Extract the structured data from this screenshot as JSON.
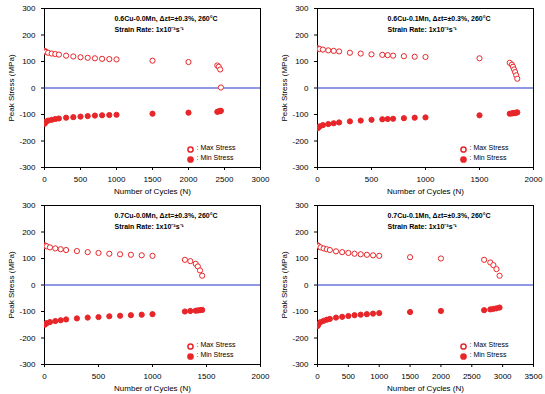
{
  "chart_data": [
    {
      "type": "scatter",
      "annotations": [
        "0.6Cu-0.0Mn, Δεt=±0.3%, 260°C",
        "Strain Rate: 1x10⁻³s⁻¹"
      ],
      "x_label": "Number of Cycles (N)",
      "y_label": "Peak Stress (MPa)",
      "x": [
        1,
        10,
        20,
        50,
        100,
        150,
        200,
        300,
        400,
        500,
        600,
        700,
        800,
        900,
        1000,
        1500,
        2000,
        2400,
        2420,
        2440,
        2450
      ],
      "series": [
        {
          "name": ": Max Stress",
          "color": "#e8262a",
          "marker": "open_circle",
          "values": [
            140,
            138,
            136,
            133,
            130,
            128,
            126,
            122,
            119,
            116,
            114,
            112,
            110,
            109,
            108,
            103,
            98,
            85,
            80,
            70,
            2
          ]
        },
        {
          "name": ": Min Stress",
          "color": "#e8262a",
          "marker": "circle",
          "values": [
            -135,
            -130,
            -127,
            -123,
            -120,
            -117,
            -115,
            -112,
            -110,
            -108,
            -106,
            -104,
            -103,
            -102,
            -101,
            -97,
            -93,
            -90,
            -88,
            -87,
            -86
          ]
        }
      ],
      "hline": 0,
      "xlim": [
        0,
        3000
      ],
      "xticks": [
        0,
        500,
        1000,
        1500,
        2000,
        2500,
        3000
      ],
      "ylim": [
        -300,
        300
      ],
      "yticks": [
        -300,
        -200,
        -100,
        0,
        100,
        200,
        300
      ]
    },
    {
      "type": "scatter",
      "annotations": [
        "0.6Cu-0.1Mn, Δεt=±0.3%, 260°C",
        "Strain Rate: 1x10⁻³s⁻¹"
      ],
      "x_label": "Number of Cycles (N)",
      "y_label": "Peak Stress (MPa)",
      "x": [
        1,
        10,
        20,
        50,
        100,
        150,
        200,
        300,
        400,
        500,
        600,
        650,
        700,
        800,
        900,
        1000,
        1500,
        1780,
        1800,
        1810,
        1820,
        1830,
        1840,
        1850
      ],
      "series": [
        {
          "name": ": Max Stress",
          "color": "#e8262a",
          "marker": "open_circle",
          "values": [
            150,
            148,
            147,
            145,
            142,
            140,
            138,
            133,
            130,
            127,
            125,
            124,
            122,
            120,
            118,
            117,
            112,
            95,
            88,
            80,
            70,
            60,
            48,
            35
          ]
        },
        {
          "name": ": Min Stress",
          "color": "#e8262a",
          "marker": "circle",
          "values": [
            -152,
            -148,
            -145,
            -140,
            -136,
            -133,
            -130,
            -126,
            -123,
            -120,
            -118,
            -117,
            -116,
            -114,
            -112,
            -111,
            -103,
            -97,
            -96,
            -95,
            -95,
            -94,
            -93,
            -92
          ]
        }
      ],
      "hline": 0,
      "xlim": [
        0,
        2000
      ],
      "xticks": [
        0,
        500,
        1000,
        1500,
        2000
      ],
      "ylim": [
        -300,
        300
      ],
      "yticks": [
        -300,
        -200,
        -100,
        0,
        100,
        200,
        300
      ]
    },
    {
      "type": "scatter",
      "annotations": [
        "0.7Cu-0.0Mn, Δεt=±0.3%, 260°C",
        "Strain Rate: 1x10⁻³s⁻¹"
      ],
      "x_label": "Number of Cycles (N)",
      "y_label": "Peak Stress (MPa)",
      "x": [
        1,
        10,
        20,
        50,
        100,
        150,
        200,
        300,
        400,
        500,
        600,
        700,
        800,
        900,
        1000,
        1300,
        1350,
        1400,
        1420,
        1440,
        1460
      ],
      "series": [
        {
          "name": ": Max Stress",
          "color": "#e8262a",
          "marker": "open_circle",
          "values": [
            150,
            148,
            146,
            142,
            138,
            135,
            132,
            128,
            124,
            121,
            118,
            116,
            114,
            112,
            110,
            95,
            90,
            80,
            70,
            55,
            35
          ]
        },
        {
          "name": ": Min Stress",
          "color": "#e8262a",
          "marker": "circle",
          "values": [
            -150,
            -147,
            -144,
            -140,
            -136,
            -133,
            -130,
            -126,
            -123,
            -121,
            -118,
            -116,
            -114,
            -112,
            -110,
            -100,
            -98,
            -97,
            -96,
            -95,
            -94
          ]
        }
      ],
      "hline": 0,
      "xlim": [
        0,
        2000
      ],
      "xticks": [
        0,
        500,
        1000,
        1500,
        2000
      ],
      "ylim": [
        -300,
        300
      ],
      "yticks": [
        -300,
        -200,
        -100,
        0,
        100,
        200,
        300
      ]
    },
    {
      "type": "scatter",
      "annotations": [
        "0.7Cu-0.1Mn, Δεt=±0.3%, 260°C",
        "Strain Rate: 1x10⁻³s⁻¹"
      ],
      "x_label": "Number of Cycles (N)",
      "y_label": "Peak Stress (MPa)",
      "x": [
        1,
        10,
        20,
        50,
        100,
        150,
        200,
        300,
        400,
        500,
        600,
        700,
        800,
        900,
        1000,
        1500,
        2000,
        2700,
        2800,
        2850,
        2900,
        2950
      ],
      "series": [
        {
          "name": ": Max Stress",
          "color": "#e8262a",
          "marker": "open_circle",
          "values": [
            150,
            148,
            146,
            142,
            138,
            135,
            132,
            127,
            124,
            121,
            118,
            116,
            114,
            112,
            110,
            105,
            100,
            95,
            85,
            75,
            60,
            35
          ]
        },
        {
          "name": ": Min Stress",
          "color": "#e8262a",
          "marker": "circle",
          "values": [
            -155,
            -150,
            -146,
            -140,
            -135,
            -131,
            -128,
            -123,
            -120,
            -117,
            -114,
            -112,
            -110,
            -108,
            -106,
            -102,
            -98,
            -95,
            -92,
            -90,
            -88,
            -85
          ]
        }
      ],
      "hline": 0,
      "xlim": [
        0,
        3500
      ],
      "xticks": [
        0,
        500,
        1000,
        1500,
        2000,
        2500,
        3000,
        3500
      ],
      "ylim": [
        -300,
        300
      ],
      "yticks": [
        -300,
        -200,
        -100,
        0,
        100,
        200,
        300
      ]
    }
  ]
}
